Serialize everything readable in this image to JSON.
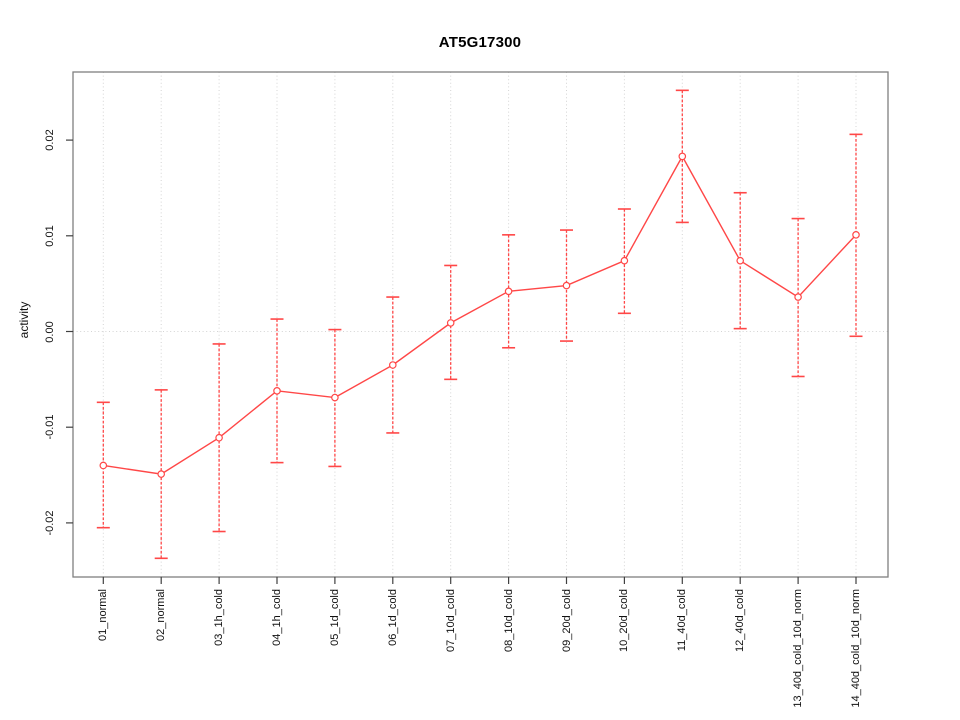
{
  "page": {
    "background": "#ffffff"
  },
  "chart_data": {
    "type": "line",
    "title": "AT5G17300",
    "xlabel": "",
    "ylabel": "activity",
    "legend": "none",
    "grid": {
      "vertical_dotted_per_category": true,
      "horizontal_dotted_zero_line": true
    },
    "marker": "open-circle",
    "error_bars": true,
    "categories": [
      "01_normal",
      "02_normal",
      "03_1h_cold",
      "04_1h_cold",
      "05_1d_cold",
      "06_1d_cold",
      "07_10d_cold",
      "08_10d_cold",
      "09_20d_cold",
      "10_20d_cold",
      "11_40d_cold",
      "12_40d_cold",
      "13_40d_cold_10d_norm",
      "14_40d_cold_10d_norm"
    ],
    "series": [
      {
        "name": "activity",
        "values": [
          -0.014,
          -0.0149,
          -0.0111,
          -0.0062,
          -0.0069,
          -0.0035,
          0.0009,
          0.0042,
          0.0048,
          0.0074,
          0.0183,
          0.0074,
          0.0036,
          0.0101
        ],
        "error_upper": [
          -0.0074,
          -0.0061,
          -0.0013,
          0.0013,
          0.0002,
          0.0036,
          0.0069,
          0.0101,
          0.0106,
          0.0128,
          0.0252,
          0.0145,
          0.0118,
          0.0206
        ],
        "error_lower": [
          -0.0205,
          -0.0237,
          -0.0209,
          -0.0137,
          -0.0141,
          -0.0106,
          -0.005,
          -0.0017,
          -0.001,
          0.0019,
          0.0114,
          0.0003,
          -0.0047,
          -0.0005
        ]
      }
    ],
    "y_ticks": [
      0.02,
      0.01,
      0,
      -0.01,
      -0.02
    ],
    "y_tick_labels": [
      "0.02",
      "0.01",
      "0.00",
      "-0.01",
      "-0.02"
    ],
    "ylim": [
      -0.0255,
      0.027
    ],
    "colors": {
      "series": "#ff4747",
      "grid": "#d4d4d4",
      "box": "#808080",
      "tick": "#404040",
      "text": "#111111"
    }
  }
}
